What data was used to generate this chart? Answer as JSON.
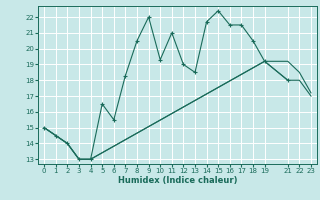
{
  "title": "",
  "xlabel": "Humidex (Indice chaleur)",
  "bg_color": "#c8e8e8",
  "grid_color": "#ffffff",
  "line_color": "#1a6b5a",
  "xlim": [
    -0.5,
    23.5
  ],
  "ylim": [
    12.7,
    22.7
  ],
  "yticks": [
    13,
    14,
    15,
    16,
    17,
    18,
    19,
    20,
    21,
    22
  ],
  "xticks": [
    0,
    1,
    2,
    3,
    4,
    5,
    6,
    7,
    8,
    9,
    10,
    11,
    12,
    13,
    14,
    15,
    16,
    17,
    18,
    19,
    21,
    22,
    23
  ],
  "line1_x": [
    0,
    1,
    2,
    3,
    4,
    5,
    6,
    7,
    8,
    9,
    10,
    11,
    12,
    13,
    14,
    15,
    16,
    17,
    18,
    19,
    21
  ],
  "line1_y": [
    15.0,
    14.5,
    14.0,
    13.0,
    13.0,
    16.5,
    15.5,
    18.3,
    20.5,
    22.0,
    19.3,
    21.0,
    19.0,
    18.5,
    21.7,
    22.4,
    21.5,
    21.5,
    20.5,
    19.2,
    18.0
  ],
  "line2_x": [
    0,
    1,
    2,
    3,
    4,
    19,
    21,
    22,
    23
  ],
  "line2_y": [
    15.0,
    14.5,
    14.0,
    13.0,
    13.0,
    19.2,
    18.0,
    18.0,
    17.0
  ],
  "line3_x": [
    0,
    1,
    2,
    3,
    4,
    19,
    21,
    22,
    23
  ],
  "line3_y": [
    15.0,
    14.5,
    14.0,
    13.0,
    13.0,
    19.2,
    19.2,
    18.5,
    17.2
  ]
}
